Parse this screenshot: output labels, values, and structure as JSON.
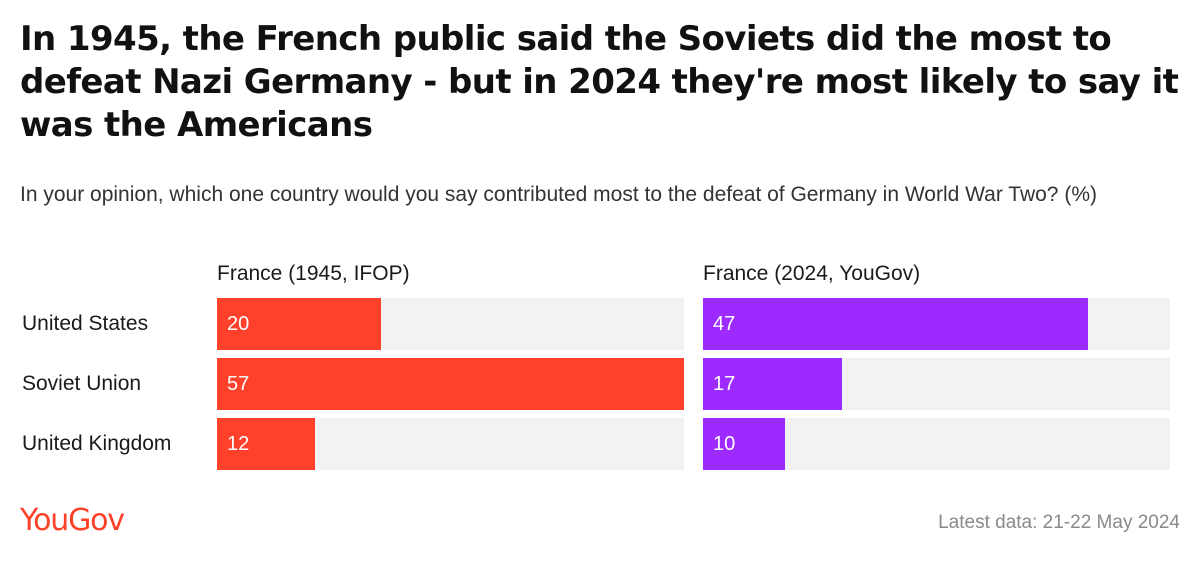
{
  "chart_data": {
    "type": "bar",
    "title": "In 1945, the French public said the Soviets did the most to defeat Nazi Germany - but in 2024 they're most likely to say it was the Americans",
    "subtitle": "In your opinion, which one country would you say contributed most to the defeat of Germany in World War Two? (%)",
    "categories": [
      "United States",
      "Soviet Union",
      "United Kingdom"
    ],
    "series": [
      {
        "name": "France (1945, IFOP)",
        "values": [
          20,
          57,
          12
        ],
        "color": "#ff412c"
      },
      {
        "name": "France (2024, YouGov)",
        "values": [
          47,
          17,
          10
        ],
        "color": "#9d2bff"
      }
    ],
    "xlim": [
      0,
      57
    ],
    "track_color": "#f2f2f2",
    "logo": "YouGov",
    "footnote": "Latest data: 21-22 May 2024"
  }
}
